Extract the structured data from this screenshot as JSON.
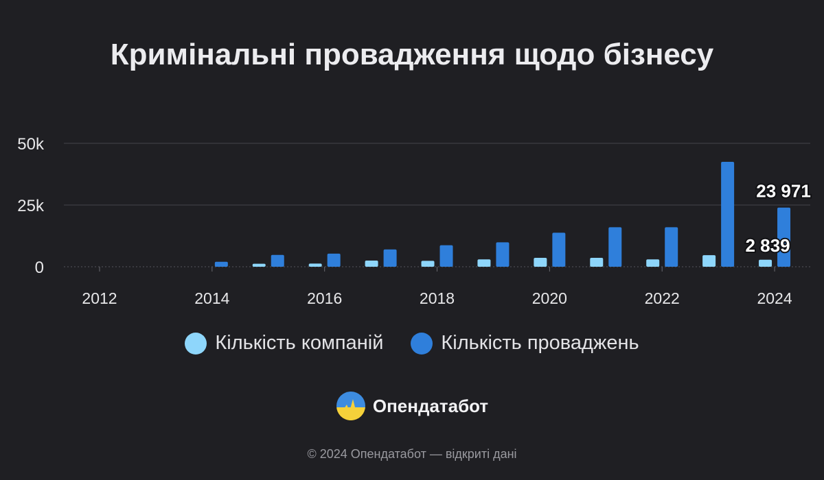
{
  "chart_data": {
    "type": "bar",
    "title": "Кримінальні провадження щодо бізнесу",
    "categories": [
      2012,
      2013,
      2014,
      2015,
      2016,
      2017,
      2018,
      2019,
      2020,
      2021,
      2022,
      2023,
      2024
    ],
    "x_tick_labels": [
      "2012",
      "2014",
      "2016",
      "2018",
      "2020",
      "2022",
      "2024"
    ],
    "y_tick_labels": [
      "0",
      "25k",
      "50k"
    ],
    "y_ticks": [
      0,
      25000,
      50000
    ],
    "ylim": [
      0,
      50000
    ],
    "grid": true,
    "legend_position": "bottom",
    "series": [
      {
        "name": "Кількість компаній",
        "color": "#8ed6fb",
        "values": [
          0,
          0,
          0,
          1200,
          1300,
          2500,
          2400,
          3000,
          3600,
          3600,
          3000,
          4700,
          2839
        ]
      },
      {
        "name": "Кількість проваджень",
        "color": "#2f7fdb",
        "values": [
          0,
          0,
          2000,
          4800,
          5300,
          7000,
          8700,
          9900,
          13800,
          16000,
          16000,
          42500,
          23971
        ]
      }
    ],
    "data_labels": [
      {
        "series": 0,
        "category": 2024,
        "text": "2 839"
      },
      {
        "series": 1,
        "category": 2024,
        "text": "23 971"
      }
    ]
  },
  "brand": {
    "name": "Опендатабот",
    "logo_icon": "opendatabot-logo-icon"
  },
  "footer": {
    "text": "© 2024 Опендатабот — відкриті дані"
  },
  "colors": {
    "background": "#1f1f23",
    "grid": "#45454b",
    "text": "#e8e8ea"
  }
}
